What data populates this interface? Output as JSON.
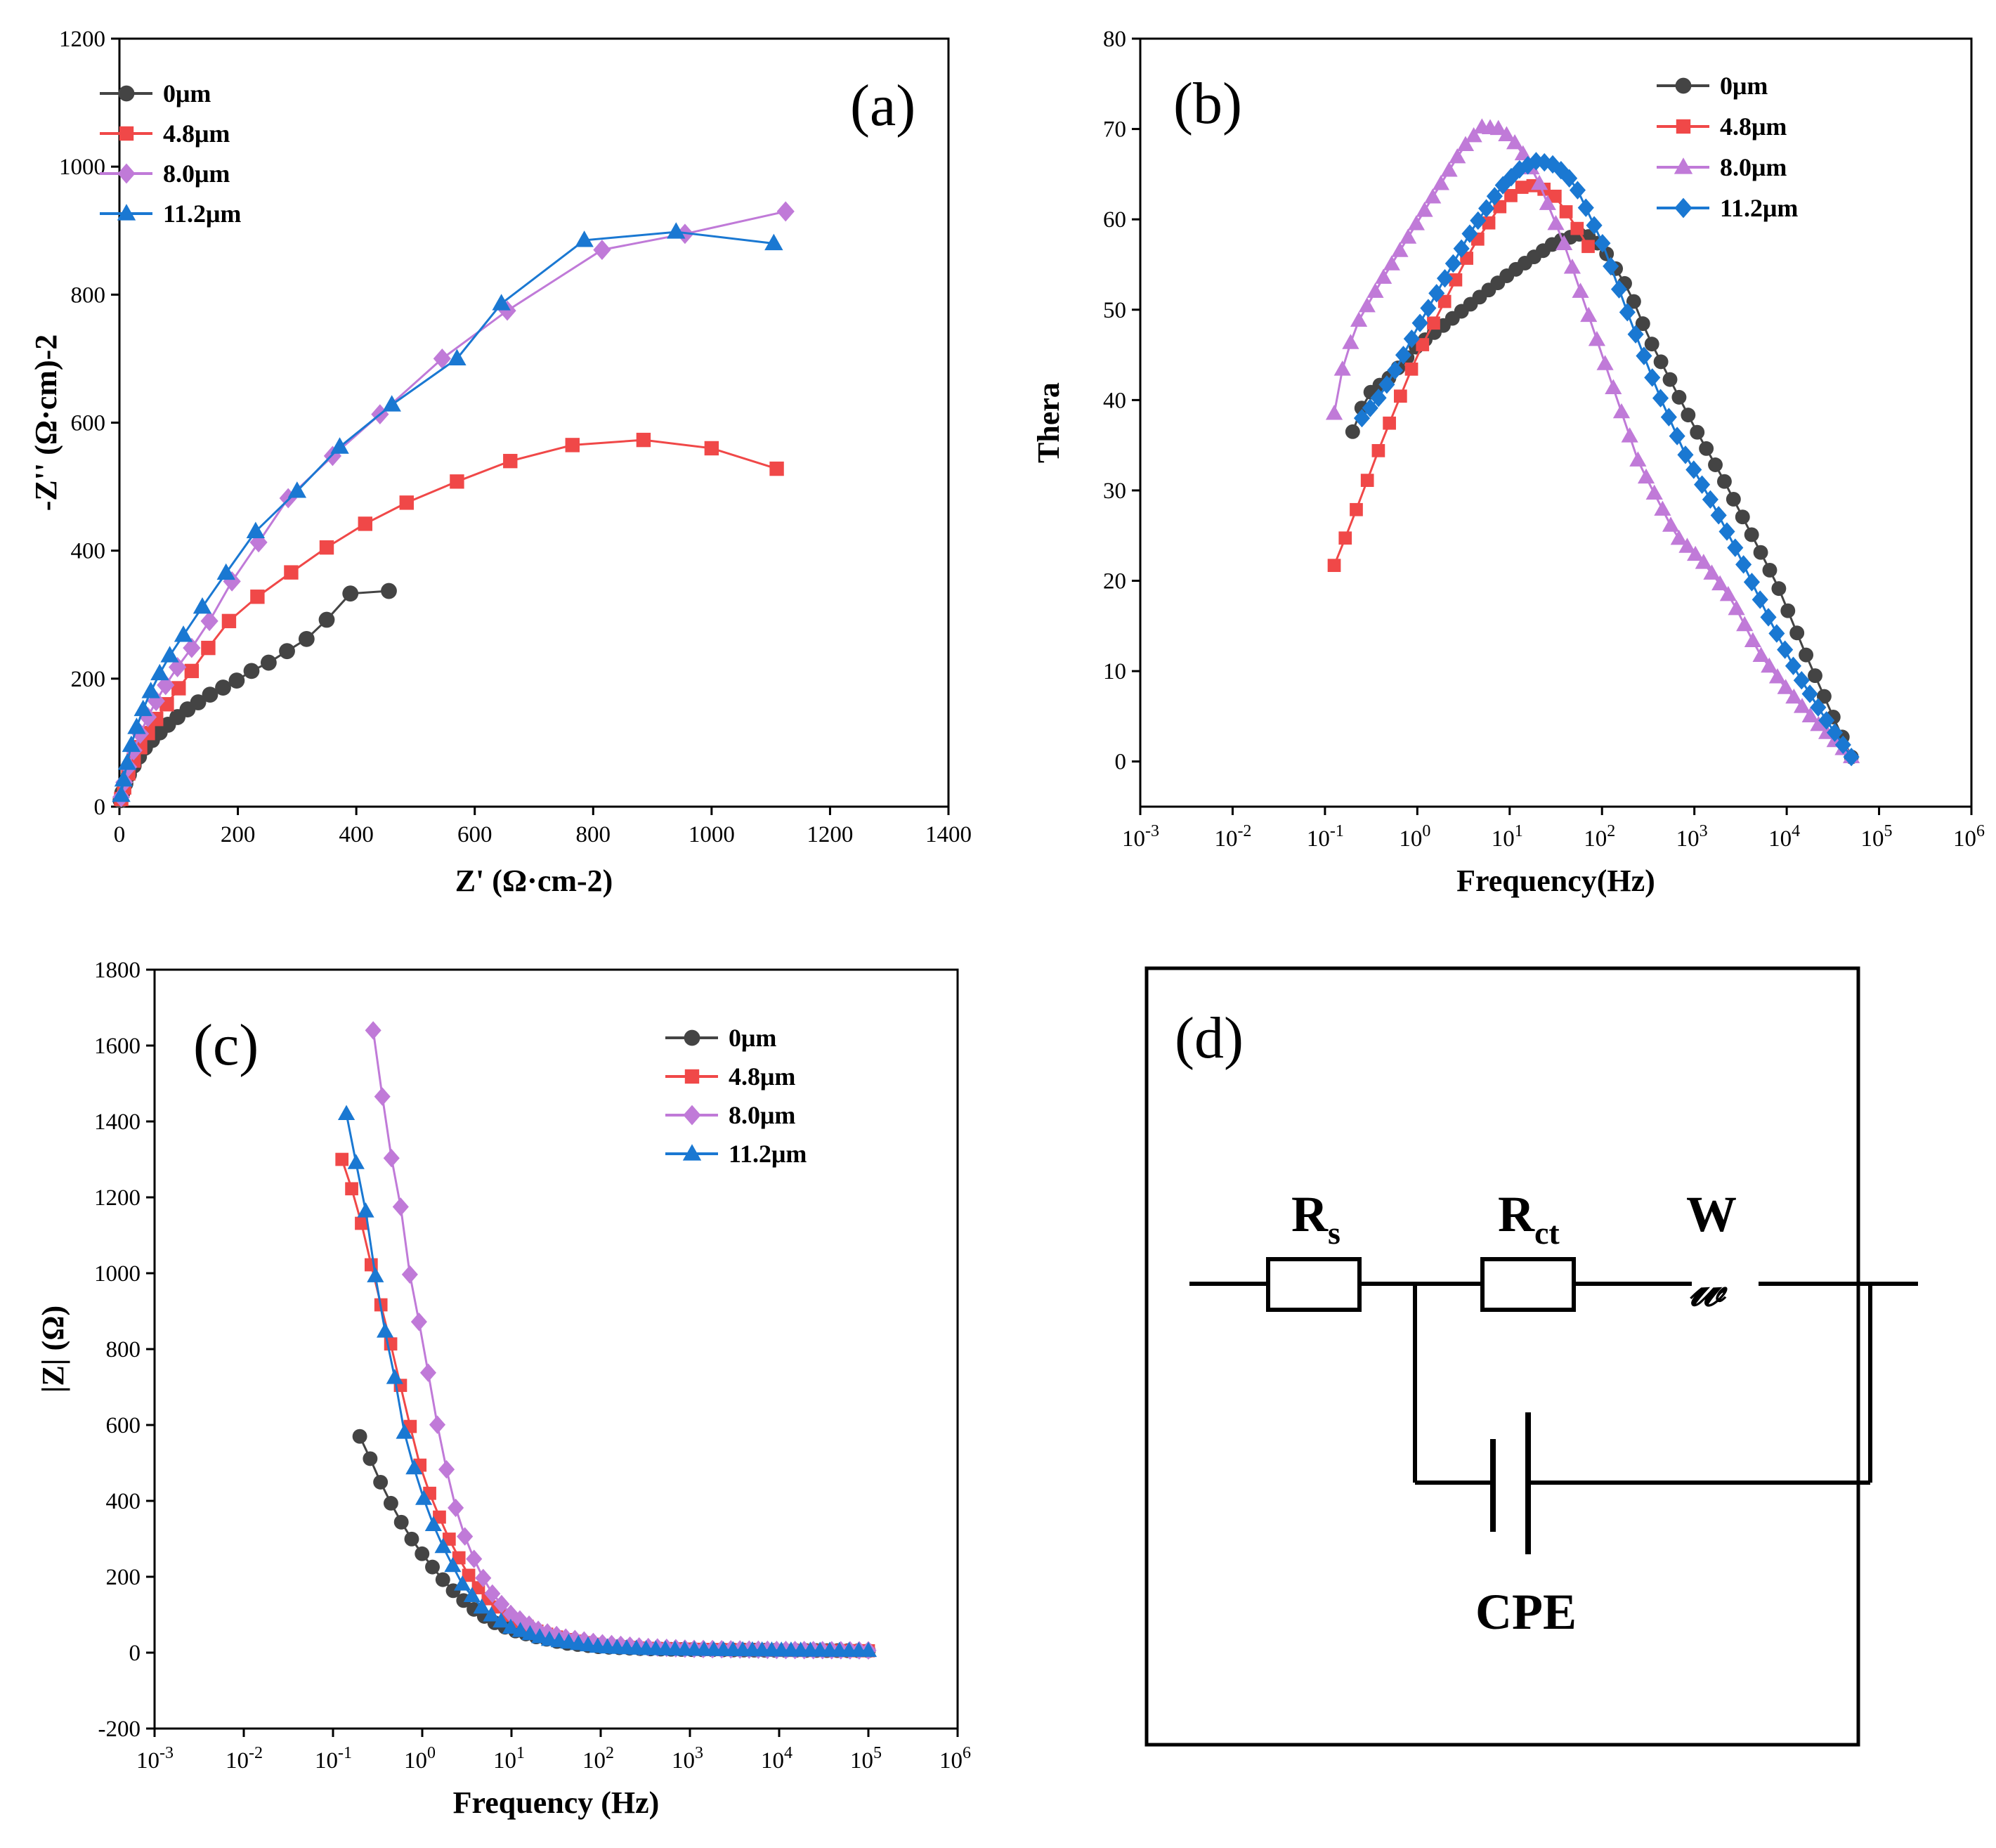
{
  "colors": {
    "s0": "#444444",
    "s48": "#f04848",
    "s80": "#c07ad8",
    "s112": "#1a78d2"
  },
  "chart_data": [
    {
      "id": "a",
      "panel_label": "(a)",
      "type": "scatter",
      "xlabel": "Z' (Ω·cm-2)",
      "ylabel": "-Z'' (Ω·cm)-2",
      "xlim": [
        0,
        1400
      ],
      "ylim": [
        0,
        1200
      ],
      "xticks": [
        "0",
        "200",
        "400",
        "600",
        "800",
        "1000",
        "1200",
        "1400"
      ],
      "yticks": [
        "0",
        "200",
        "400",
        "600",
        "800",
        "1000",
        "1200"
      ],
      "legend_position": "top-left",
      "series": [
        {
          "name": "0μm",
          "marker": "circle",
          "color": "#444444",
          "x": [
            2,
            5,
            10,
            16,
            24,
            33,
            43,
            55,
            68,
            82,
            98,
            115,
            133,
            153,
            175,
            198,
            223,
            252,
            283,
            316,
            350,
            390,
            455
          ],
          "y": [
            10,
            22,
            36,
            50,
            64,
            78,
            92,
            104,
            116,
            128,
            140,
            152,
            163,
            175,
            186,
            197,
            212,
            225,
            243,
            262,
            292,
            333,
            337
          ]
        },
        {
          "name": "4.8μm",
          "marker": "square",
          "color": "#f04848",
          "x": [
            3,
            8,
            15,
            24,
            35,
            48,
            62,
            80,
            100,
            122,
            150,
            185,
            233,
            290,
            350,
            415,
            485,
            570,
            660,
            765,
            885,
            1000,
            1110
          ],
          "y": [
            12,
            30,
            52,
            72,
            93,
            115,
            137,
            160,
            185,
            212,
            248,
            290,
            328,
            366,
            405,
            442,
            475,
            508,
            540,
            565,
            573,
            560,
            528
          ]
        },
        {
          "name": "8.0μm",
          "marker": "diamond",
          "color": "#c07ad8",
          "x": [
            3,
            8,
            15,
            24,
            35,
            48,
            62,
            78,
            98,
            122,
            152,
            190,
            235,
            285,
            360,
            440,
            545,
            655,
            815,
            955,
            1125
          ],
          "y": [
            15,
            38,
            62,
            88,
            114,
            140,
            165,
            190,
            218,
            248,
            290,
            352,
            413,
            482,
            548,
            613,
            700,
            775,
            870,
            895,
            930
          ]
        },
        {
          "name": "11.2μm",
          "marker": "triangle",
          "color": "#1a78d2",
          "x": [
            3,
            7,
            13,
            20,
            29,
            40,
            53,
            68,
            85,
            108,
            140,
            180,
            230,
            300,
            372,
            460,
            570,
            645,
            785,
            940,
            1105
          ],
          "y": [
            18,
            42,
            68,
            96,
            124,
            152,
            180,
            208,
            236,
            268,
            312,
            365,
            430,
            493,
            562,
            628,
            700,
            786,
            885,
            898,
            880
          ]
        }
      ]
    },
    {
      "id": "b",
      "panel_label": "(b)",
      "type": "scatter",
      "xscale": "log",
      "xlabel": "Frequency(Hz)",
      "ylabel": "Thera",
      "xlim_exp": [
        -3,
        6
      ],
      "ylim": [
        -5,
        80
      ],
      "xticks": [
        {
          "base": "10",
          "exp": "-3"
        },
        {
          "base": "10",
          "exp": "-2"
        },
        {
          "base": "10",
          "exp": "-1"
        },
        {
          "base": "10",
          "exp": "0"
        },
        {
          "base": "10",
          "exp": "1"
        },
        {
          "base": "10",
          "exp": "2"
        },
        {
          "base": "10",
          "exp": "3"
        },
        {
          "base": "10",
          "exp": "4"
        },
        {
          "base": "10",
          "exp": "5"
        },
        {
          "base": "10",
          "exp": "6"
        }
      ],
      "yticks": [
        "0",
        "10",
        "20",
        "30",
        "40",
        "50",
        "60",
        "70",
        "80"
      ],
      "legend_position": "top-right",
      "series": [
        {
          "name": "0μm",
          "marker": "circle",
          "color": "#444444",
          "log_freq_range": [
            -0.7,
            4.7
          ],
          "n": 56,
          "curve_log_f": [
            -0.7,
            -0.55,
            -0.3,
            0,
            0.5,
            1,
            1.5,
            1.8,
            2,
            2.3,
            2.5,
            2.8,
            3,
            3.3,
            3.6,
            3.9,
            4.2,
            4.5,
            4.7
          ],
          "curve_theta": [
            36.5,
            40.5,
            42.5,
            46,
            50,
            54,
            57.5,
            58.5,
            57,
            52,
            47,
            41,
            37,
            31.5,
            25.5,
            19.5,
            12,
            5,
            0.5
          ]
        },
        {
          "name": "4.8μm",
          "marker": "square",
          "color": "#f04848",
          "log_freq_range": [
            -0.9,
            1.85
          ],
          "n": 24,
          "curve_log_f": [
            -0.9,
            -0.75,
            -0.6,
            -0.4,
            -0.2,
            0,
            0.3,
            0.6,
            0.9,
            1.1,
            1.3,
            1.5,
            1.7,
            1.85
          ],
          "curve_theta": [
            21.7,
            25.5,
            29.5,
            35,
            40,
            45,
            51,
            57,
            61.5,
            63.5,
            63.8,
            62.5,
            59.5,
            57
          ]
        },
        {
          "name": "8.0μm",
          "marker": "triangle",
          "color": "#c07ad8",
          "log_freq_range": [
            -0.9,
            4.7
          ],
          "n": 64,
          "curve_log_f": [
            -0.9,
            -0.8,
            -0.65,
            -0.4,
            -0.1,
            0.2,
            0.5,
            0.7,
            0.9,
            1.1,
            1.3,
            1.6,
            2,
            2.4,
            2.8,
            3.1,
            3.4,
            3.7,
            4,
            4.3,
            4.5,
            4.7
          ],
          "curve_theta": [
            38.5,
            44,
            48.5,
            53,
            58,
            63,
            68,
            70.2,
            70,
            68,
            64.5,
            57,
            45,
            33,
            25,
            22,
            18,
            12,
            8,
            4.5,
            2.5,
            0.5
          ]
        },
        {
          "name": "11.2μm",
          "marker": "diamond",
          "color": "#1a78d2",
          "log_freq_range": [
            -0.6,
            4.7
          ],
          "n": 60,
          "curve_log_f": [
            -0.6,
            -0.4,
            -0.2,
            0,
            0.3,
            0.6,
            0.9,
            1.1,
            1.3,
            1.5,
            1.7,
            2,
            2.3,
            2.6,
            2.9,
            3.2,
            3.5,
            3.8,
            4.1,
            4.4,
            4.7
          ],
          "curve_theta": [
            38,
            40.5,
            44,
            48,
            53.5,
            59,
            63.5,
            65.5,
            66.5,
            66,
            64,
            57.5,
            49,
            41,
            34,
            28.5,
            22.5,
            16,
            10,
            5,
            0.5
          ]
        }
      ]
    },
    {
      "id": "c",
      "panel_label": "(c)",
      "type": "scatter",
      "xscale": "log",
      "xlabel": "Frequency (Hz)",
      "ylabel": "|Z| (Ω)",
      "xlim_exp": [
        -3,
        6
      ],
      "ylim": [
        -200,
        1800
      ],
      "xticks": [
        {
          "base": "10",
          "exp": "-3"
        },
        {
          "base": "10",
          "exp": "-2"
        },
        {
          "base": "10",
          "exp": "-1"
        },
        {
          "base": "10",
          "exp": "0"
        },
        {
          "base": "10",
          "exp": "1"
        },
        {
          "base": "10",
          "exp": "2"
        },
        {
          "base": "10",
          "exp": "3"
        },
        {
          "base": "10",
          "exp": "4"
        },
        {
          "base": "10",
          "exp": "5"
        },
        {
          "base": "10",
          "exp": "6"
        }
      ],
      "yticks": [
        "-200",
        "0",
        "200",
        "400",
        "600",
        "800",
        "1000",
        "1200",
        "1400",
        "1600",
        "1800"
      ],
      "legend_position": "top-right",
      "series": [
        {
          "name": "0μm",
          "marker": "circle",
          "color": "#444444",
          "log_freq_range": [
            -0.7,
            5
          ],
          "n": 50,
          "curve_log_f": [
            -0.7,
            -0.6,
            -0.45,
            -0.3,
            -0.15,
            0,
            0.2,
            0.4,
            0.6,
            0.8,
            1,
            1.3,
            1.6,
            2,
            2.5,
            3,
            4,
            5
          ],
          "curve_z": [
            570,
            520,
            440,
            370,
            310,
            260,
            200,
            150,
            110,
            80,
            60,
            40,
            25,
            15,
            10,
            8,
            6,
            5
          ]
        },
        {
          "name": "4.8μm",
          "marker": "square",
          "color": "#f04848",
          "log_freq_range": [
            -0.9,
            5
          ],
          "n": 55,
          "curve_log_f": [
            -0.9,
            -0.8,
            -0.7,
            -0.6,
            -0.5,
            -0.4,
            -0.3,
            -0.15,
            0,
            0.15,
            0.3,
            0.5,
            0.7,
            1,
            1.3,
            1.6,
            2,
            2.5,
            3,
            4,
            5
          ],
          "curve_z": [
            1300,
            1230,
            1150,
            1050,
            950,
            860,
            760,
            610,
            470,
            380,
            300,
            210,
            150,
            90,
            55,
            35,
            20,
            12,
            9,
            6,
            5
          ]
        },
        {
          "name": "8.0μm",
          "marker": "diamond",
          "color": "#c07ad8",
          "log_freq_range": [
            -0.55,
            5
          ],
          "n": 55,
          "curve_log_f": [
            -0.55,
            -0.45,
            -0.35,
            -0.25,
            -0.15,
            -0.05,
            0.05,
            0.2,
            0.35,
            0.5,
            0.65,
            0.8,
            1,
            1.3,
            1.6,
            2,
            2.5,
            3,
            4,
            5
          ],
          "curve_z": [
            1640,
            1470,
            1310,
            1190,
            1010,
            890,
            760,
            560,
            400,
            290,
            210,
            150,
            100,
            60,
            40,
            25,
            15,
            10,
            7,
            6
          ]
        },
        {
          "name": "11.2μm",
          "marker": "triangle",
          "color": "#1a78d2",
          "log_freq_range": [
            -0.85,
            5
          ],
          "n": 55,
          "curve_log_f": [
            -0.85,
            -0.75,
            -0.65,
            -0.55,
            -0.45,
            -0.35,
            -0.2,
            -0.05,
            0.1,
            0.25,
            0.45,
            0.7,
            1,
            1.4,
            2,
            2.5,
            3,
            4,
            5
          ],
          "curve_z": [
            1420,
            1300,
            1190,
            1030,
            880,
            780,
            580,
            450,
            350,
            270,
            180,
            110,
            65,
            35,
            15,
            10,
            8,
            6,
            5
          ]
        }
      ]
    }
  ],
  "circuit": {
    "panel_label": "(d)",
    "rs_main": "R",
    "rs_sub": "s",
    "rct_main": "R",
    "rct_sub": "ct",
    "w_label": "W",
    "warburg_glyph": "𝓌",
    "cpe_label": "CPE"
  }
}
